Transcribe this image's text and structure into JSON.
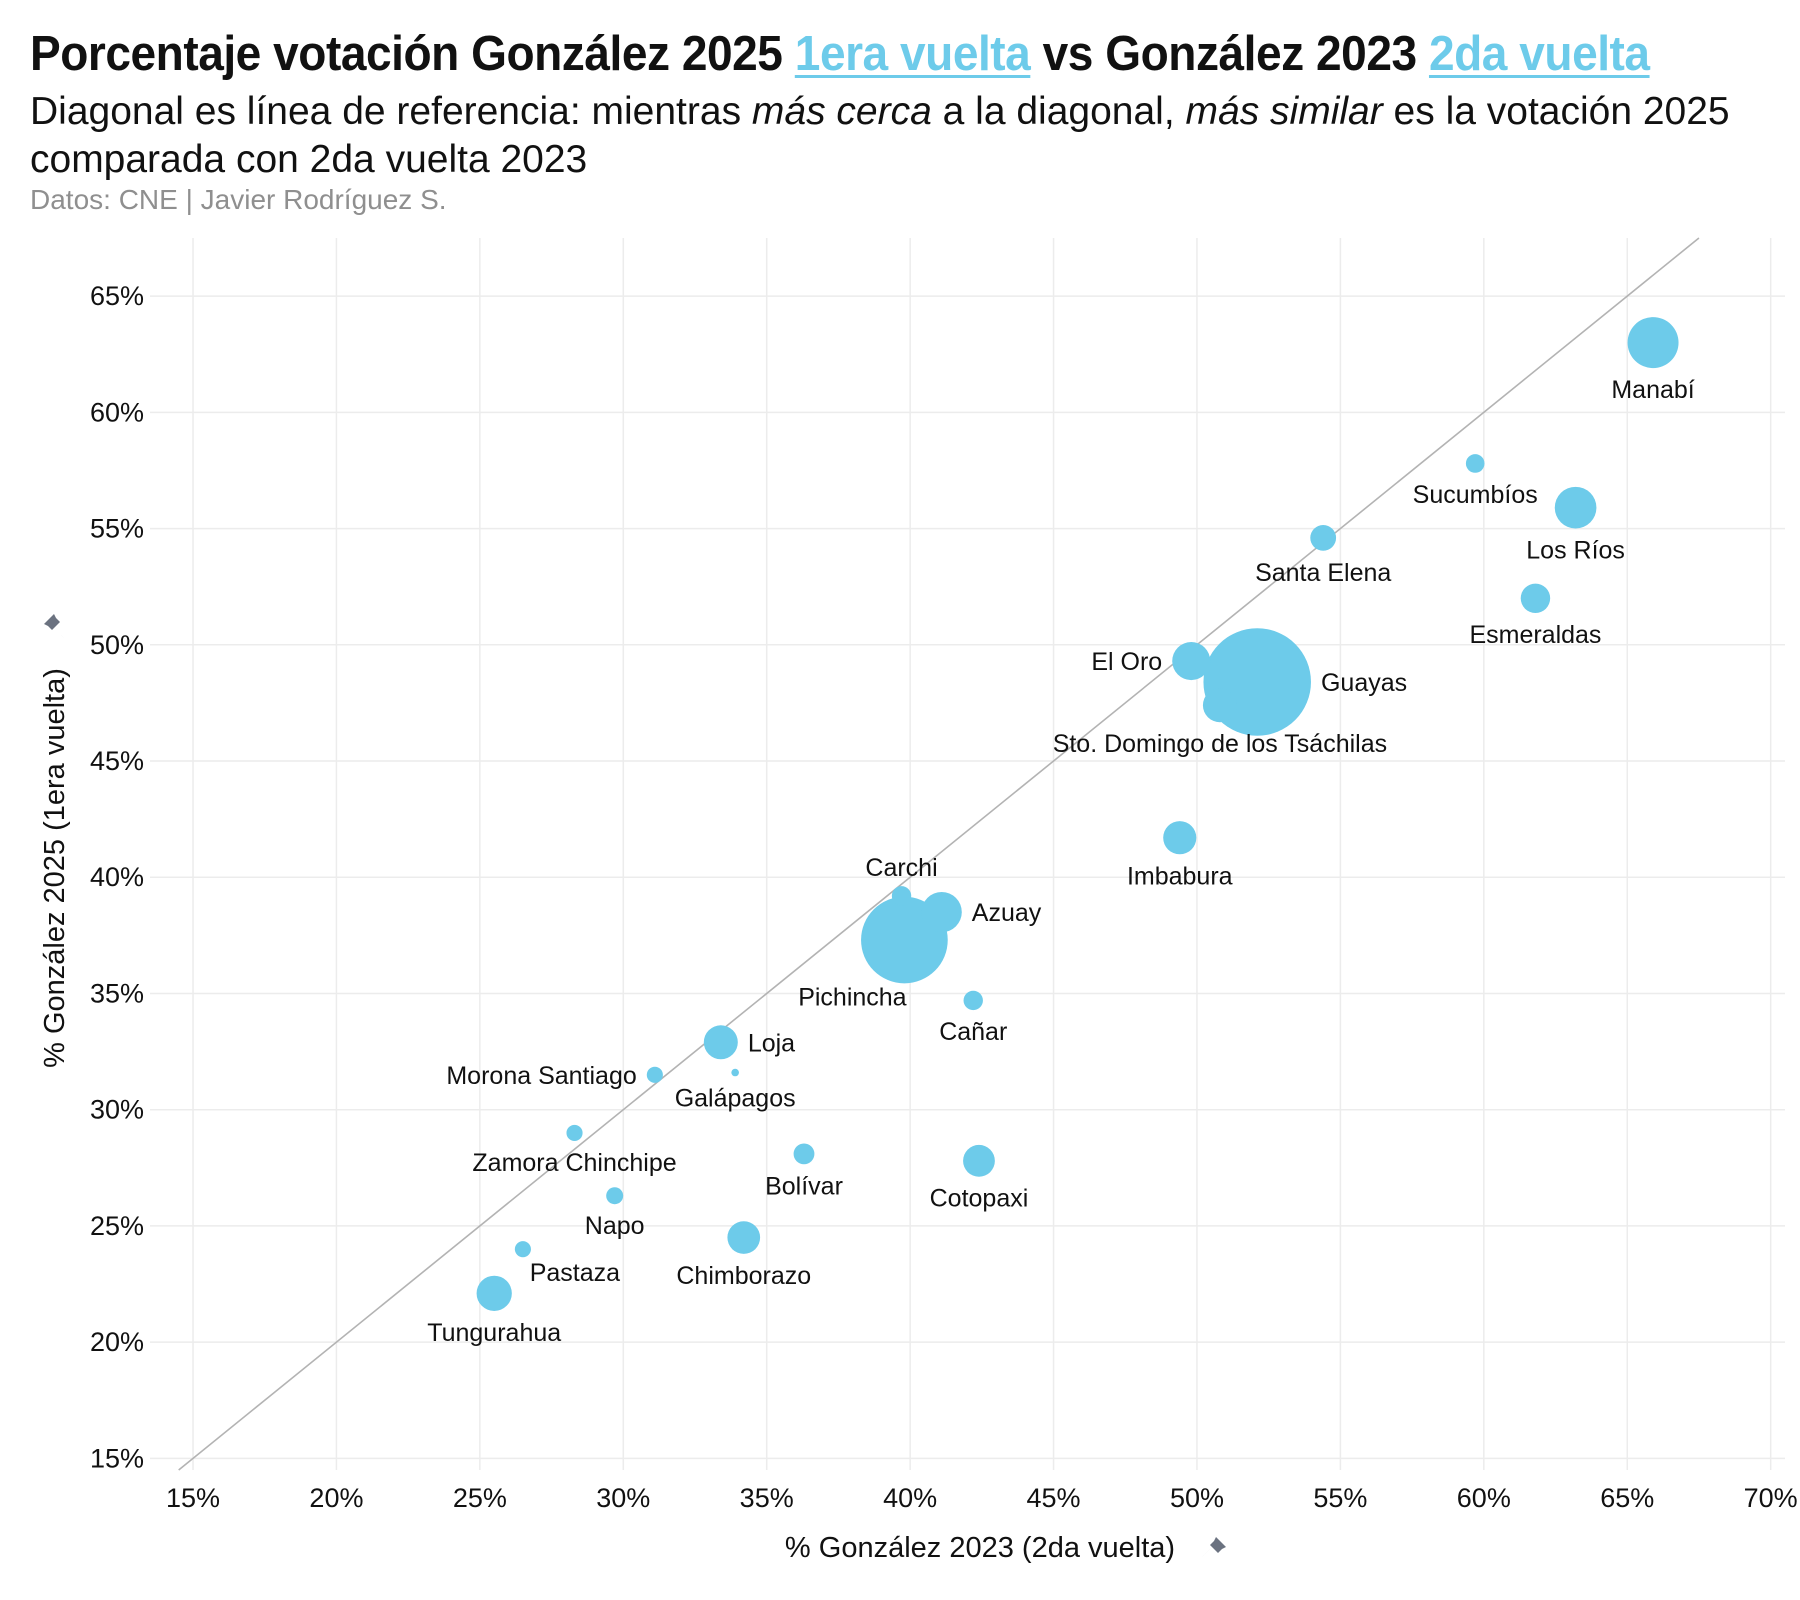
{
  "header": {
    "title_part1": "Porcentaje votación González 2025",
    "title_highlight1": "1era vuelta",
    "title_part2": "vs González 2023",
    "title_highlight2": "2da vuelta",
    "subtitle_part1": "Diagonal es línea de referencia: mientras",
    "subtitle_em1": "más cerca",
    "subtitle_part2": "a la diagonal,",
    "subtitle_em2": "más similar",
    "subtitle_part3": "es la votación 2025 comparada con 2da vuelta 2023",
    "source": "Datos: CNE | Javier Rodríguez S."
  },
  "colors": {
    "point": "#6dcbea",
    "highlight": "#6dcbea",
    "grid": "#ececec",
    "diagonal": "#b3b3b3",
    "pin": "#6b7280"
  },
  "chart_data": {
    "type": "scatter",
    "title": "Porcentaje votación González 2025 1era vuelta vs González 2023 2da vuelta",
    "xlabel": "% González 2023 (2da vuelta)",
    "ylabel": "% González 2025 (1era vuelta)",
    "xlim": [
      13.5,
      70.5
    ],
    "ylim": [
      14.5,
      67.5
    ],
    "xticks": [
      15,
      20,
      25,
      30,
      35,
      40,
      45,
      50,
      55,
      60,
      65,
      70
    ],
    "yticks": [
      15,
      20,
      25,
      30,
      35,
      40,
      45,
      50,
      55,
      60,
      65
    ],
    "x_tick_labels": [
      "15%",
      "20%",
      "25%",
      "30%",
      "35%",
      "40%",
      "45%",
      "50%",
      "55%",
      "60%",
      "65%",
      "70%"
    ],
    "y_tick_labels": [
      "15%",
      "20%",
      "25%",
      "30%",
      "35%",
      "40%",
      "45%",
      "50%",
      "55%",
      "60%",
      "65%"
    ],
    "grid": true,
    "reference_line": "y = x",
    "size_encoding": "relative electorate size (unitless)",
    "points": [
      {
        "name": "Manabí",
        "x": 65.9,
        "y": 63.0,
        "size": 9,
        "label_pos": "below"
      },
      {
        "name": "Sucumbíos",
        "x": 59.7,
        "y": 57.8,
        "size": 1.2,
        "label_pos": "below"
      },
      {
        "name": "Los Ríos",
        "x": 63.2,
        "y": 55.9,
        "size": 6,
        "label_pos": "below"
      },
      {
        "name": "Santa Elena",
        "x": 54.4,
        "y": 54.6,
        "size": 2.3,
        "label_pos": "below"
      },
      {
        "name": "Esmeraldas",
        "x": 61.8,
        "y": 52.0,
        "size": 3,
        "label_pos": "below"
      },
      {
        "name": "El Oro",
        "x": 49.8,
        "y": 49.3,
        "size": 5,
        "label_pos": "left"
      },
      {
        "name": "Guayas",
        "x": 52.1,
        "y": 48.4,
        "size": 40,
        "label_pos": "right"
      },
      {
        "name": "Sto. Domingo de los Tsáchilas",
        "x": 50.8,
        "y": 47.4,
        "size": 4,
        "label_pos": "below"
      },
      {
        "name": "Imbabura",
        "x": 49.4,
        "y": 41.7,
        "size": 3.8,
        "label_pos": "below"
      },
      {
        "name": "Carchi",
        "x": 39.7,
        "y": 39.2,
        "size": 1.3,
        "label_pos": "above"
      },
      {
        "name": "Azuay",
        "x": 41.1,
        "y": 38.5,
        "size": 5.6,
        "label_pos": "right"
      },
      {
        "name": "Pichincha",
        "x": 39.8,
        "y": 37.3,
        "size": 26,
        "label_pos": "below-left"
      },
      {
        "name": "Cañar",
        "x": 42.2,
        "y": 34.7,
        "size": 1.3,
        "label_pos": "below"
      },
      {
        "name": "Loja",
        "x": 33.4,
        "y": 32.9,
        "size": 4,
        "label_pos": "right"
      },
      {
        "name": "Morona Santiago",
        "x": 31.1,
        "y": 31.5,
        "size": 0.9,
        "label_pos": "left"
      },
      {
        "name": "Galápagos",
        "x": 33.9,
        "y": 31.6,
        "size": 0.2,
        "label_pos": "below"
      },
      {
        "name": "Zamora Chinchipe",
        "x": 28.3,
        "y": 29.0,
        "size": 0.9,
        "label_pos": "below"
      },
      {
        "name": "Bolívar",
        "x": 36.3,
        "y": 28.1,
        "size": 1.5,
        "label_pos": "below"
      },
      {
        "name": "Cotopaxi",
        "x": 42.4,
        "y": 27.8,
        "size": 3.5,
        "label_pos": "below"
      },
      {
        "name": "Napo",
        "x": 29.7,
        "y": 26.3,
        "size": 1.0,
        "label_pos": "below"
      },
      {
        "name": "Chimborazo",
        "x": 34.2,
        "y": 24.5,
        "size": 3.7,
        "label_pos": "below"
      },
      {
        "name": "Pastaza",
        "x": 26.5,
        "y": 24.0,
        "size": 0.9,
        "label_pos": "below-right"
      },
      {
        "name": "Tungurahua",
        "x": 25.5,
        "y": 22.1,
        "size": 4.3,
        "label_pos": "below"
      }
    ]
  }
}
